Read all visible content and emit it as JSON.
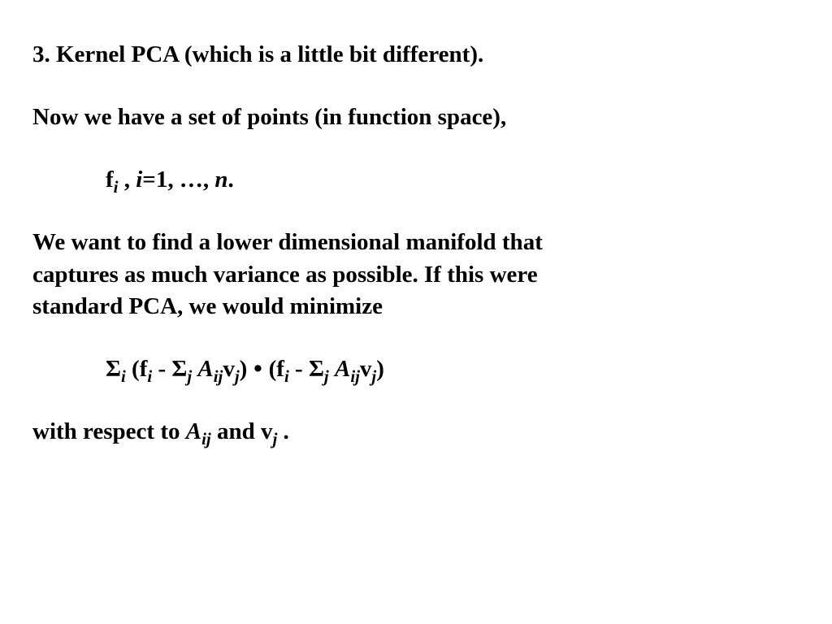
{
  "background_color": "#ffffff",
  "text_color": "#000000",
  "font_family": "Times New Roman",
  "font_size_pt": 22,
  "font_weight": "bold",
  "line1": "3. Kernel PCA (which is a little bit different).",
  "line2": "Now we have a set of points (in function space),",
  "eq1": {
    "f": "f",
    "sub_i": "i",
    "mid": " , ",
    "i": "i",
    "rest": "=1, …, ",
    "n": "n",
    "period": "."
  },
  "para2a": "We want to find a lower dimensional manifold that",
  "para2b": "captures as much variance as possible. If this were",
  "para2c": "standard PCA, we would minimize",
  "eq2": {
    "sigma": "S",
    "i": "i",
    "j": "j",
    "ij": "ij",
    "open": " (",
    "f": "f",
    "minus": " - ",
    "A": "A",
    "v": "v",
    "close": ")",
    "dot": " • "
  },
  "line_last_a": "with respect to ",
  "line_last_A": "A",
  "line_last_ij": "ij",
  "line_last_b": " and ",
  "line_last_v": "v",
  "line_last_j": "j",
  "line_last_c": " ."
}
